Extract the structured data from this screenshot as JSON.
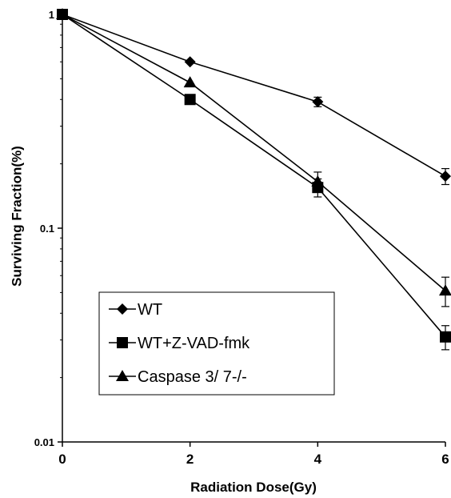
{
  "chart_data": {
    "type": "line",
    "xlabel": "Radiation Dose(Gy)",
    "ylabel": "Surviving Fraction(%)",
    "xlim": [
      0,
      6
    ],
    "ylim": [
      0.01,
      1
    ],
    "yscale": "log",
    "x_ticks": [
      0,
      2,
      4,
      6
    ],
    "x_tick_labels": [
      "0",
      "2",
      "4",
      "6"
    ],
    "y_ticks": [
      0.01,
      0.1,
      1
    ],
    "y_tick_labels": [
      "0.01",
      "0.1",
      "1"
    ],
    "grid": false,
    "legend_position": "lower-left",
    "series": [
      {
        "name": "WT",
        "marker": "diamond",
        "color": "#000000",
        "x": [
          0,
          2,
          4,
          6
        ],
        "y": [
          1.0,
          0.6,
          0.39,
          0.175
        ],
        "err": [
          0,
          0,
          0.02,
          0.015
        ]
      },
      {
        "name": "WT+Z-VAD-fmk",
        "marker": "square",
        "color": "#000000",
        "x": [
          0,
          2,
          4,
          6
        ],
        "y": [
          1.0,
          0.4,
          0.155,
          0.031
        ],
        "err": [
          0,
          0,
          0.015,
          0.004
        ]
      },
      {
        "name": "Caspase 3/ 7-/-",
        "marker": "triangle",
        "color": "#000000",
        "x": [
          0,
          2,
          4,
          6
        ],
        "y": [
          1.0,
          0.48,
          0.165,
          0.051
        ],
        "err": [
          0,
          0,
          0.018,
          0.008
        ]
      }
    ]
  }
}
